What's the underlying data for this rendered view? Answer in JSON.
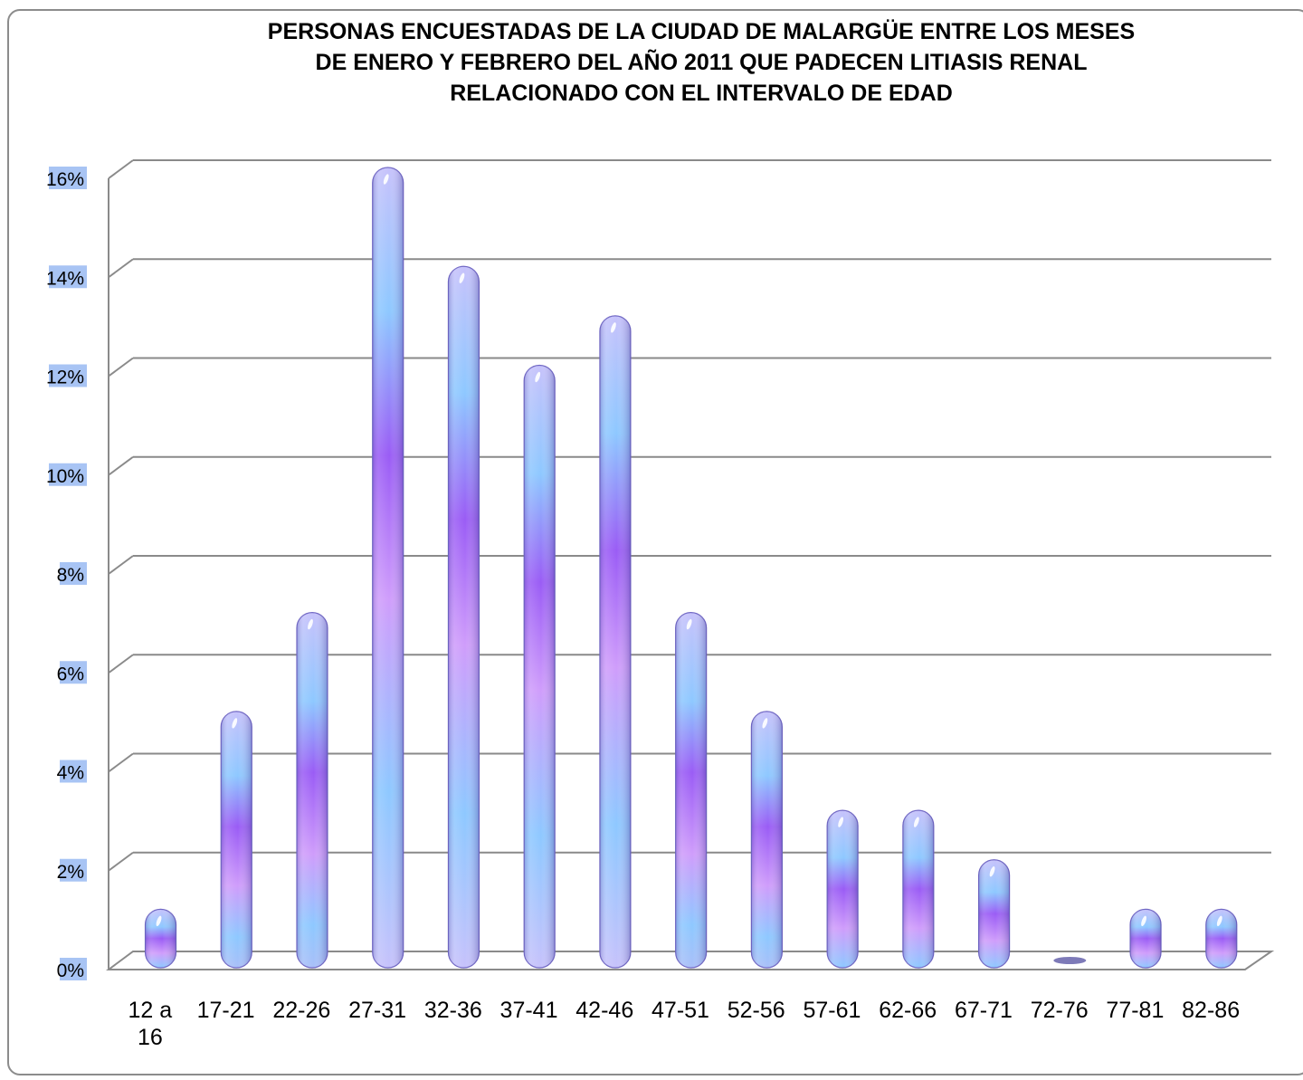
{
  "chart_data": {
    "type": "bar",
    "title": "PERSONAS ENCUESTADAS DE LA CIUDAD DE MALARGÜE ENTRE LOS MESES\nDE ENERO Y FEBRERO DEL AÑO 2011 QUE PADECEN LITIASIS RENAL\nRELACIONADO CON EL INTERVALO DE EDAD",
    "xlabel": "",
    "ylabel": "",
    "categories": [
      "12 a 16",
      "17-21",
      "22-26",
      "27-31",
      "32-36",
      "37-41",
      "42-46",
      "47-51",
      "52-56",
      "57-61",
      "62-66",
      "67-71",
      "72-76",
      "77-81",
      "82-86"
    ],
    "values": [
      1,
      5,
      7,
      16,
      14,
      12,
      13,
      7,
      5,
      3,
      3,
      2,
      0,
      1,
      1
    ],
    "value_unit": "%",
    "ylim": [
      0,
      16
    ],
    "yticks": [
      "0%",
      "2%",
      "4%",
      "6%",
      "8%",
      "10%",
      "12%",
      "14%",
      "16%"
    ],
    "grid": true,
    "legend": "none",
    "colors": {
      "bar_light": "#c6c2fb",
      "bar_blue": "#8ec8ff",
      "bar_violet": "#9a5cf5",
      "bar_lilac": "#cf9dfb",
      "tick_highlight": "#a8c4f4",
      "grid": "#8a8a8a"
    }
  }
}
